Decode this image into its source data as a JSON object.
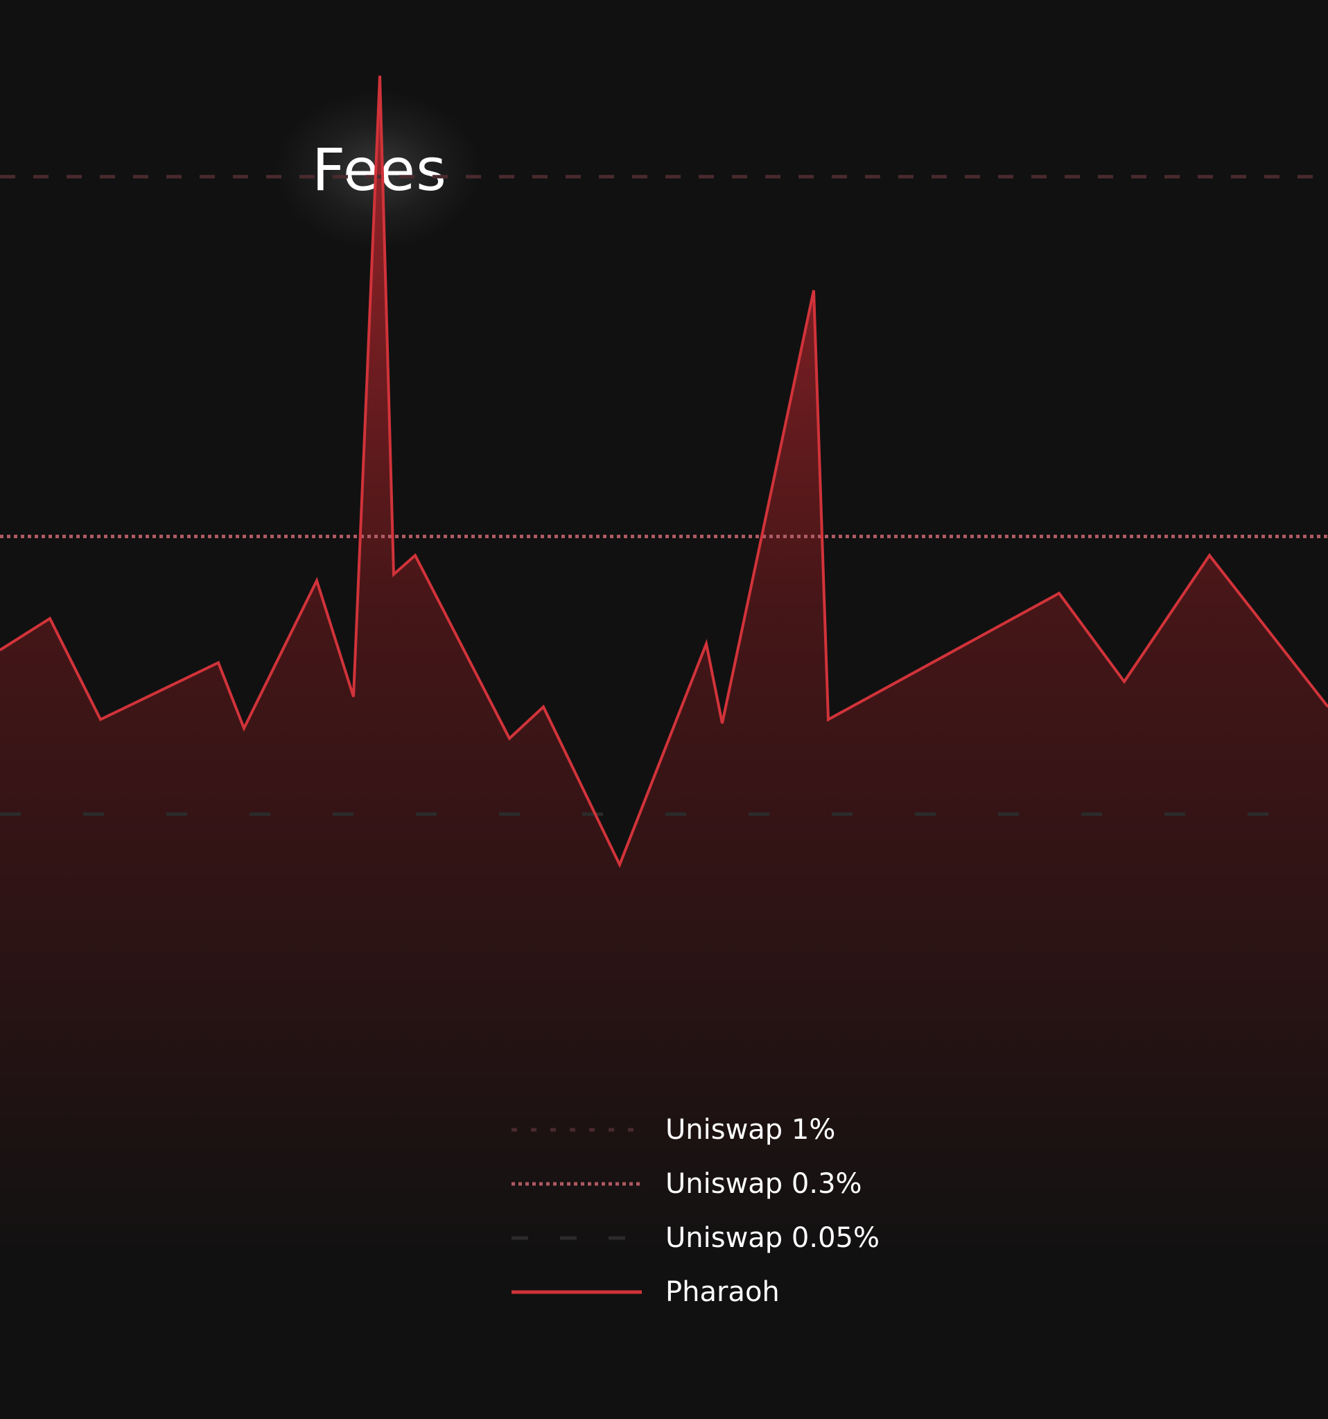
{
  "chart_data": {
    "type": "area",
    "title": "Fees",
    "xlabel": "",
    "ylabel": "",
    "ylim": [
      0,
      100
    ],
    "grid": false,
    "legend_placement": "bottom-center",
    "reference_lines": [
      {
        "name": "Uniswap 1%",
        "value": 86.0,
        "style": "dashed",
        "color": "#4a2a2e"
      },
      {
        "name": "Uniswap 0.3%",
        "value": 57.5,
        "style": "dotted",
        "color": "#b05a63"
      },
      {
        "name": "Uniswap 0.05%",
        "value": 35.5,
        "style": "long-dashed",
        "color": "#2b2b2b"
      }
    ],
    "series": [
      {
        "name": "Pharaoh",
        "style": "solid",
        "color": "#d1333a",
        "x": [
          0,
          72,
          145,
          315,
          352,
          457,
          510,
          548,
          568,
          599,
          735,
          784,
          894,
          1019,
          1042,
          1174,
          1195,
          1528,
          1622,
          1745,
          1916
        ],
        "values": [
          48.5,
          51.0,
          43.0,
          47.5,
          42.3,
          54.0,
          44.8,
          94.0,
          54.5,
          56.0,
          41.5,
          44.0,
          31.5,
          49.0,
          42.7,
          77.0,
          43.0,
          53.0,
          46.0,
          56.0,
          44.0
        ]
      }
    ],
    "legend": [
      {
        "label": "Uniswap 1%"
      },
      {
        "label": "Uniswap 0.3%"
      },
      {
        "label": "Uniswap 0.05%"
      },
      {
        "label": "Pharaoh"
      }
    ]
  }
}
